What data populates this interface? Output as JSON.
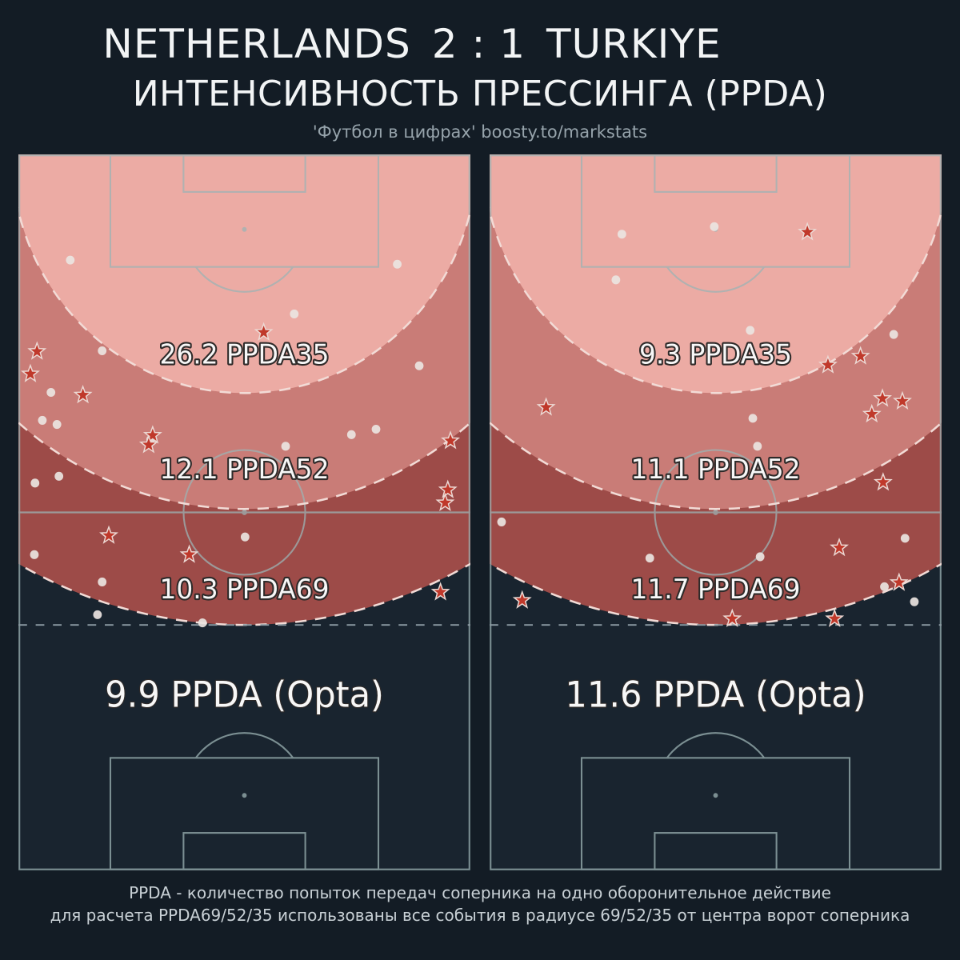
{
  "header": {
    "title_home": "NETHERLANDS",
    "title_score": "2 : 1",
    "title_away": "TURKIYE",
    "subtitle": "ИНТЕНСИВНОСТЬ ПРЕССИНГА (PPDA)",
    "credit": "'Футбол в цифрах' boosty.to/markstats"
  },
  "footer": {
    "line1": "PPDA - количество попыток передач соперника на одно оборонительное действие",
    "line2": "для расчета PPDA69/52/35 использованы все события в радиусе 69/52/35 от центра ворот соперника"
  },
  "colors": {
    "page_bg": "#131c25",
    "pitch_bg": "#19242f",
    "pitch_line": "#9cb3b4",
    "zone35": "#ecaba4",
    "zone52": "#c97c77",
    "zone69": "#9d4b48",
    "zone_border": "#f2dbd6",
    "meter_line": "#8b9aa2",
    "dot": "#eae4e1",
    "star": "#c0392b",
    "star_outline": "#ecd9d4",
    "label_fill": "#f7f7f7",
    "label_stroke": "#2e2a29"
  },
  "chart_data": [
    {
      "type": "scatter",
      "team": "Netherlands",
      "pitch": {
        "length_m": 105,
        "width_m": 68
      },
      "zones": [
        {
          "radius_m": 35,
          "value": 26.2,
          "label": "26.2 PPDA35",
          "label_y_m": 30.7
        },
        {
          "radius_m": 52,
          "value": 12.1,
          "label": "12.1 PPDA52",
          "label_y_m": 47.5
        },
        {
          "radius_m": 69,
          "value": 10.3,
          "label": "10.3 PPDA69",
          "label_y_m": 65.1
        }
      ],
      "overall": {
        "value": 9.9,
        "label": "9.9 PPDA (Opta)",
        "label_y_m": 81.0
      },
      "stars": [
        [
          36.9,
          26.1
        ],
        [
          2.8,
          28.9
        ],
        [
          1.8,
          32.2
        ],
        [
          9.7,
          35.3
        ],
        [
          20.2,
          41.2
        ],
        [
          19.6,
          42.6
        ],
        [
          65.0,
          42.0
        ],
        [
          64.6,
          49.2
        ],
        [
          64.2,
          51.1
        ],
        [
          13.6,
          55.9
        ],
        [
          25.7,
          58.7
        ],
        [
          63.5,
          64.2
        ]
      ],
      "dots": [
        [
          7.8,
          15.5
        ],
        [
          57.0,
          16.1
        ],
        [
          41.5,
          23.4
        ],
        [
          12.6,
          28.8
        ],
        [
          4.9,
          34.9
        ],
        [
          3.6,
          39.0
        ],
        [
          5.8,
          39.6
        ],
        [
          60.3,
          31.0
        ],
        [
          53.8,
          40.3
        ],
        [
          50.1,
          41.1
        ],
        [
          40.2,
          42.8
        ],
        [
          19.9,
          41.8
        ],
        [
          2.5,
          48.2
        ],
        [
          6.1,
          47.2
        ],
        [
          34.1,
          56.1
        ],
        [
          2.4,
          58.7
        ],
        [
          12.6,
          62.7
        ],
        [
          11.9,
          67.5
        ],
        [
          27.7,
          68.7
        ]
      ]
    },
    {
      "type": "scatter",
      "team": "Turkiye",
      "pitch": {
        "length_m": 105,
        "width_m": 68
      },
      "zones": [
        {
          "radius_m": 35,
          "value": 9.3,
          "label": "9.3 PPDA35",
          "label_y_m": 30.7
        },
        {
          "radius_m": 52,
          "value": 11.1,
          "label": "11.1 PPDA52",
          "label_y_m": 47.5
        },
        {
          "radius_m": 69,
          "value": 11.7,
          "label": "11.7 PPDA69",
          "label_y_m": 65.1
        }
      ],
      "overall": {
        "value": 11.6,
        "label": "11.6 PPDA (Opta)",
        "label_y_m": 81.0
      },
      "stars": [
        [
          47.8,
          11.4
        ],
        [
          50.9,
          30.9
        ],
        [
          55.8,
          29.6
        ],
        [
          8.5,
          37.1
        ],
        [
          59.1,
          35.8
        ],
        [
          62.1,
          36.2
        ],
        [
          57.5,
          38.1
        ],
        [
          59.2,
          48.1
        ],
        [
          52.6,
          57.7
        ],
        [
          4.9,
          65.4
        ],
        [
          36.5,
          68.1
        ],
        [
          51.9,
          68.1
        ],
        [
          61.6,
          62.8
        ]
      ],
      "dots": [
        [
          19.9,
          11.7
        ],
        [
          33.8,
          10.6
        ],
        [
          19.0,
          18.4
        ],
        [
          39.2,
          25.8
        ],
        [
          60.8,
          26.4
        ],
        [
          39.6,
          38.7
        ],
        [
          40.3,
          42.8
        ],
        [
          1.8,
          53.9
        ],
        [
          24.1,
          59.2
        ],
        [
          40.7,
          59.0
        ],
        [
          62.5,
          56.3
        ],
        [
          63.9,
          65.6
        ],
        [
          59.4,
          63.4
        ]
      ]
    }
  ]
}
